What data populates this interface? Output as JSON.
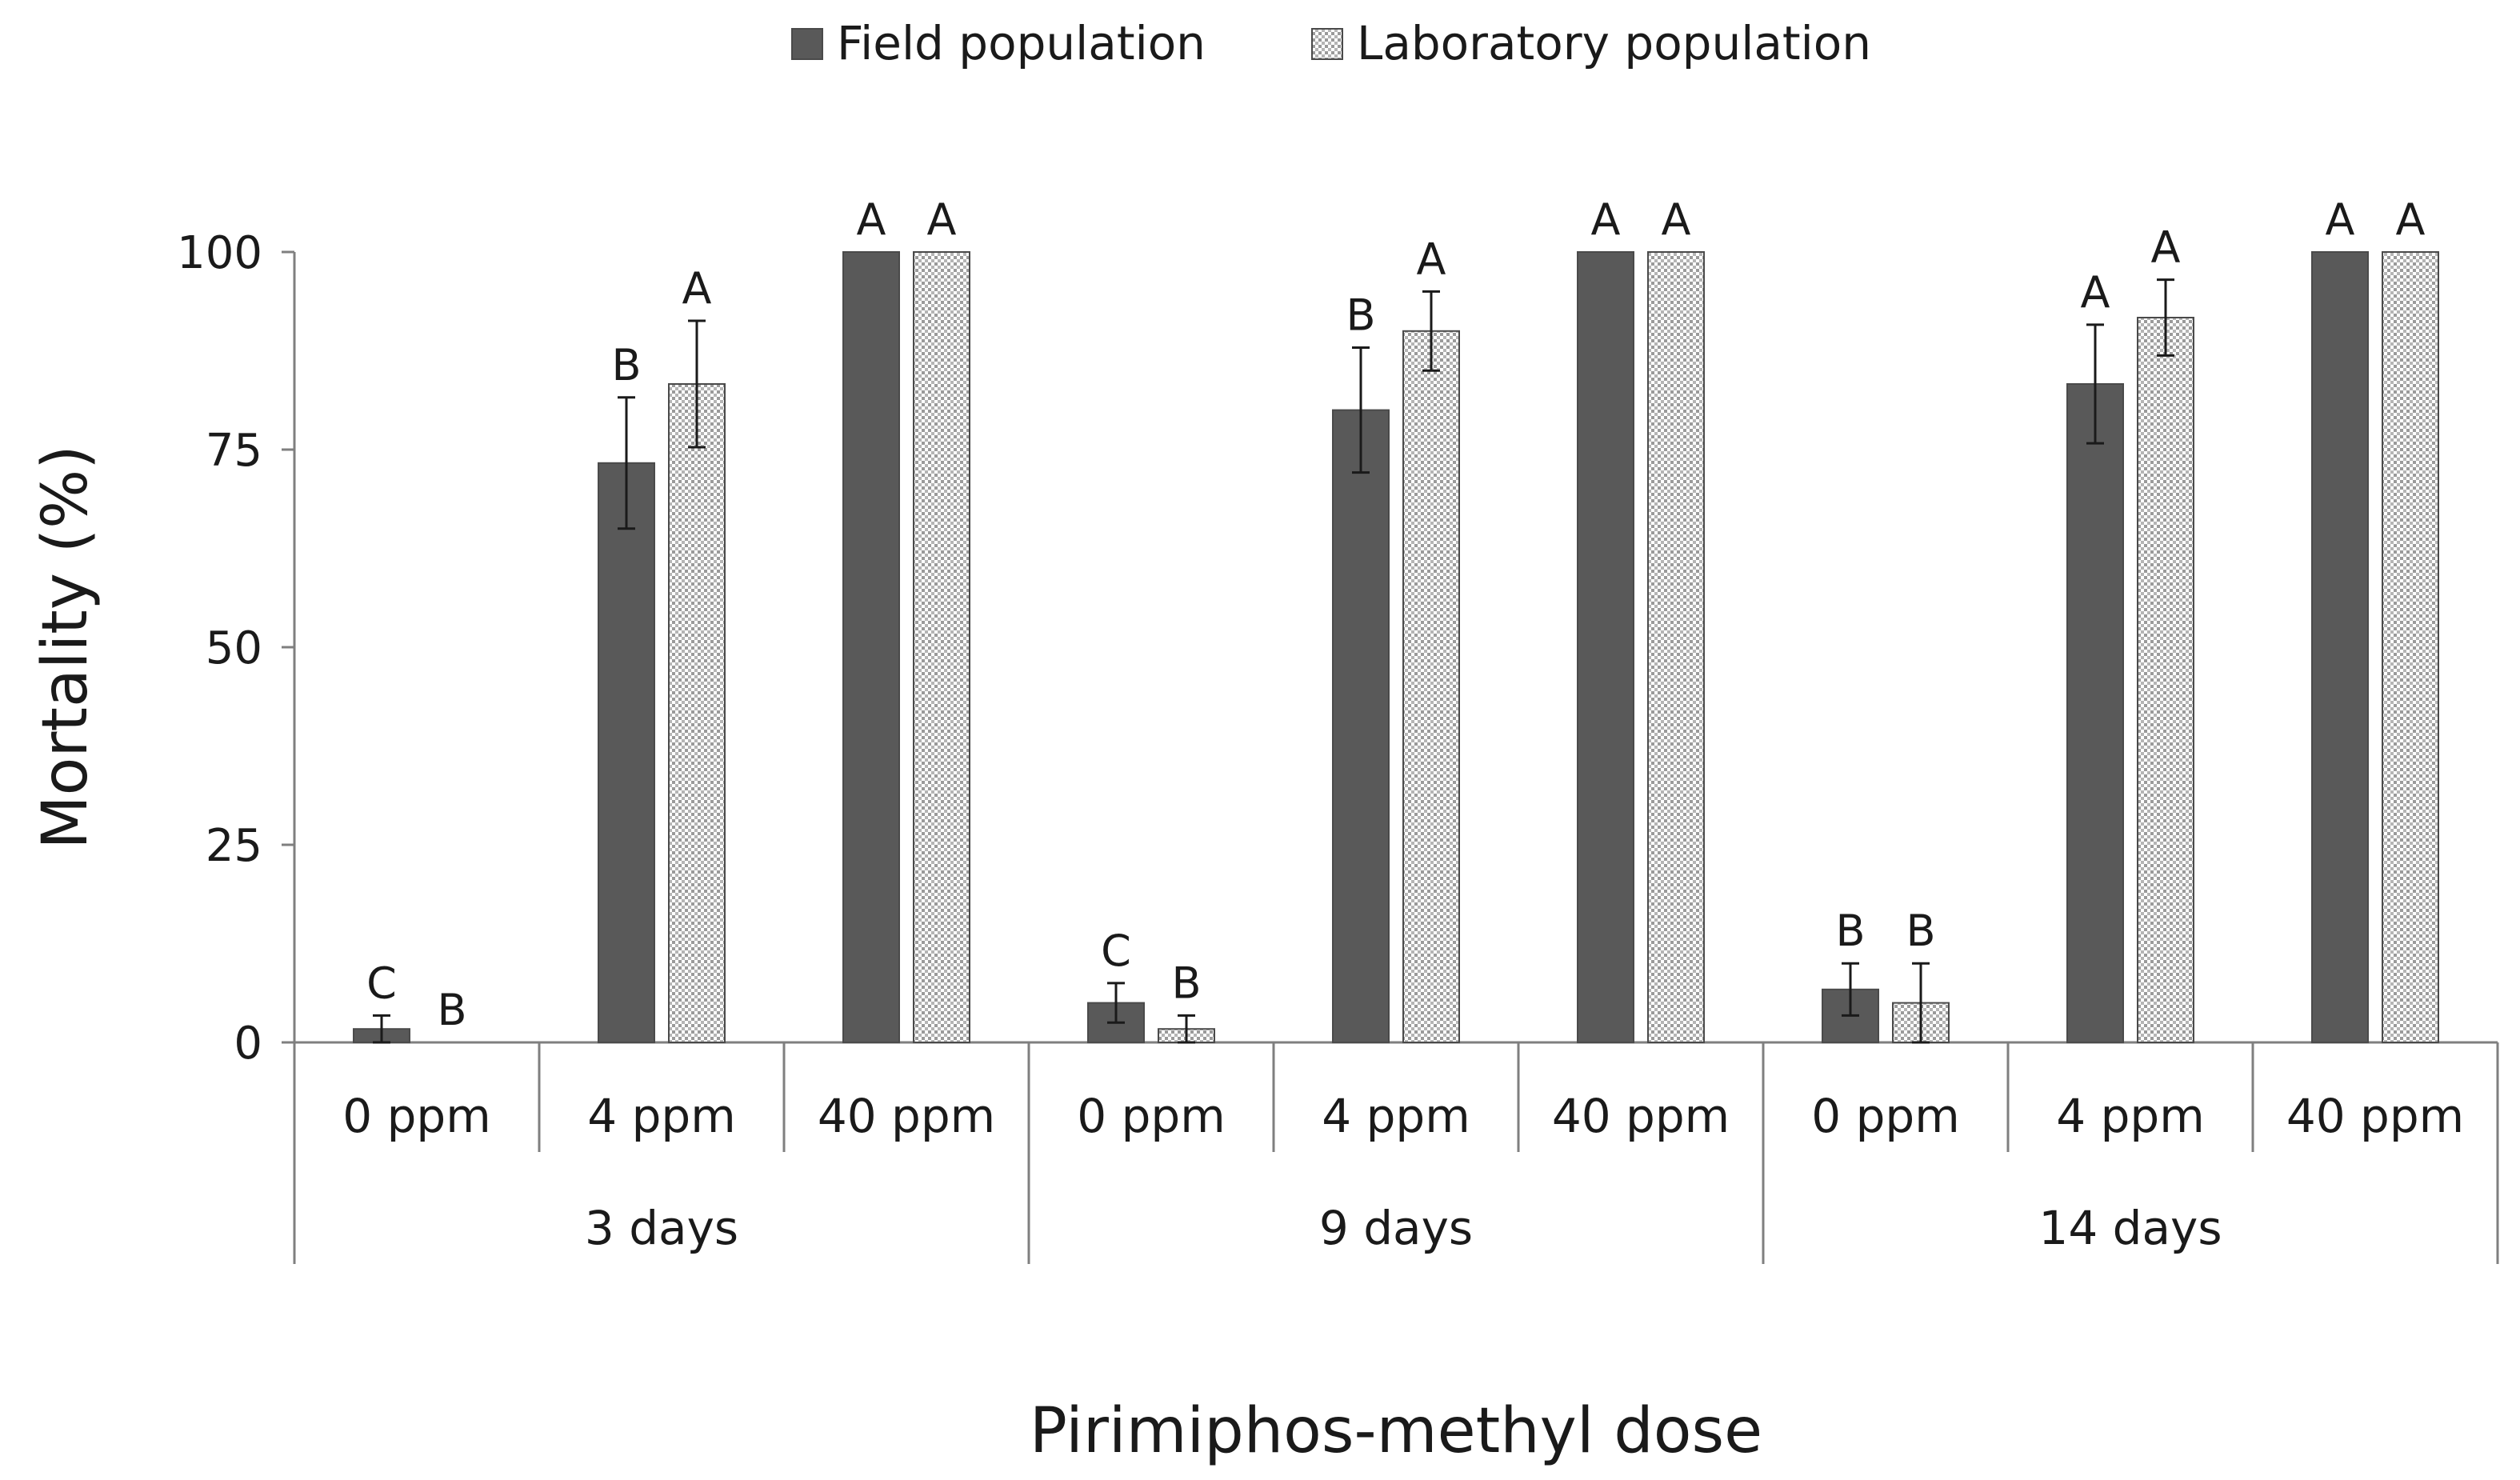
{
  "chart_data": {
    "type": "bar",
    "title": "",
    "xlabel": "Pirimiphos-methyl dose",
    "ylabel": "Mortality (%)",
    "ylim": [
      0,
      100
    ],
    "yticks": [
      0,
      25,
      50,
      75,
      100
    ],
    "grid": false,
    "legend_position": "top-center",
    "groups": [
      "3 days",
      "9 days",
      "14 days"
    ],
    "categories": [
      "0 ppm",
      "4 ppm",
      "40 ppm",
      "0 ppm",
      "4 ppm",
      "40 ppm",
      "0 ppm",
      "4 ppm",
      "40 ppm"
    ],
    "series": [
      {
        "name": "Field population",
        "color": "#595959",
        "pattern": "solid",
        "values": [
          1.7,
          73.3,
          100,
          5.0,
          80.0,
          100,
          6.7,
          83.3,
          100
        ],
        "errors": [
          1.7,
          8.3,
          0,
          2.5,
          7.9,
          0,
          3.3,
          7.5,
          0
        ],
        "letters": [
          "C",
          "B",
          "A",
          "C",
          "B",
          "A",
          "B",
          "A",
          "A"
        ]
      },
      {
        "name": "Laboratory population",
        "color": "#bdbdbd",
        "pattern": "dotted",
        "values": [
          0,
          83.3,
          100,
          1.7,
          90.0,
          100,
          5.0,
          91.7,
          100
        ],
        "errors": [
          0,
          8.0,
          0,
          1.7,
          5.0,
          0,
          5.0,
          4.8,
          0
        ],
        "letters": [
          "B",
          "A",
          "A",
          "B",
          "A",
          "A",
          "B",
          "A",
          "A"
        ]
      }
    ]
  }
}
